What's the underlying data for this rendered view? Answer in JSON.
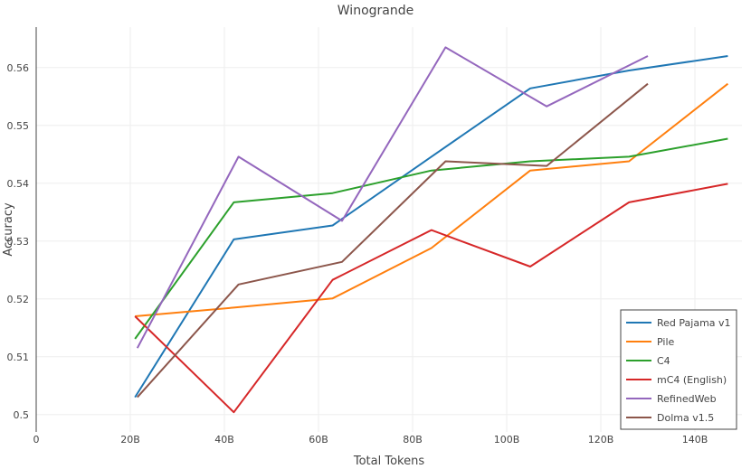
{
  "chart_data": {
    "type": "line",
    "title": "Winogrande",
    "xlabel": "Total Tokens",
    "ylabel": "Accuracy",
    "xlim": [
      0,
      150
    ],
    "ylim": [
      0.497,
      0.567
    ],
    "x_tick_values": [
      0,
      20,
      40,
      60,
      80,
      100,
      120,
      140
    ],
    "x_tick_labels": [
      "0",
      "20B",
      "40B",
      "60B",
      "80B",
      "100B",
      "120B",
      "140B"
    ],
    "y_tick_values": [
      0.5,
      0.51,
      0.52,
      0.53,
      0.54,
      0.55,
      0.56
    ],
    "y_tick_labels": [
      "0.5",
      "0.51",
      "0.52",
      "0.53",
      "0.54",
      "0.55",
      "0.56"
    ],
    "grid": true,
    "legend_position": "bottom-right",
    "series": [
      {
        "name": "Red Pajama v1",
        "color": "#1f77b4",
        "points": [
          [
            21,
            0.503
          ],
          [
            42,
            0.5303
          ],
          [
            63,
            0.5327
          ],
          [
            84,
            0.5446
          ],
          [
            105,
            0.5564
          ],
          [
            126,
            0.5595
          ],
          [
            147,
            0.562
          ]
        ]
      },
      {
        "name": "Pile",
        "color": "#ff7f0e",
        "points": [
          [
            21,
            0.517
          ],
          [
            42,
            0.5185
          ],
          [
            63,
            0.5201
          ],
          [
            84,
            0.5288
          ],
          [
            105,
            0.5422
          ],
          [
            126,
            0.5438
          ],
          [
            147,
            0.5572
          ]
        ]
      },
      {
        "name": "C4",
        "color": "#2ca02c",
        "points": [
          [
            21,
            0.5131
          ],
          [
            42,
            0.5367
          ],
          [
            63,
            0.5383
          ],
          [
            84,
            0.5422
          ],
          [
            105,
            0.5438
          ],
          [
            126,
            0.5446
          ],
          [
            147,
            0.5477
          ]
        ]
      },
      {
        "name": "mC4 (English)",
        "color": "#d62728",
        "points": [
          [
            21,
            0.517
          ],
          [
            42,
            0.5004
          ],
          [
            63,
            0.5233
          ],
          [
            84,
            0.5319
          ],
          [
            105,
            0.5256
          ],
          [
            126,
            0.5367
          ],
          [
            147,
            0.5399
          ]
        ]
      },
      {
        "name": "RefinedWeb",
        "color": "#9467bd",
        "points": [
          [
            21.5,
            0.5115
          ],
          [
            43,
            0.5446
          ],
          [
            65,
            0.5335
          ],
          [
            87,
            0.5635
          ],
          [
            108.5,
            0.5533
          ],
          [
            130,
            0.562
          ]
        ]
      },
      {
        "name": "Dolma v1.5",
        "color": "#8c564b",
        "points": [
          [
            21.5,
            0.503
          ],
          [
            43,
            0.5225
          ],
          [
            65,
            0.5264
          ],
          [
            87,
            0.5438
          ],
          [
            108.5,
            0.543
          ],
          [
            130,
            0.5572
          ]
        ]
      }
    ]
  }
}
